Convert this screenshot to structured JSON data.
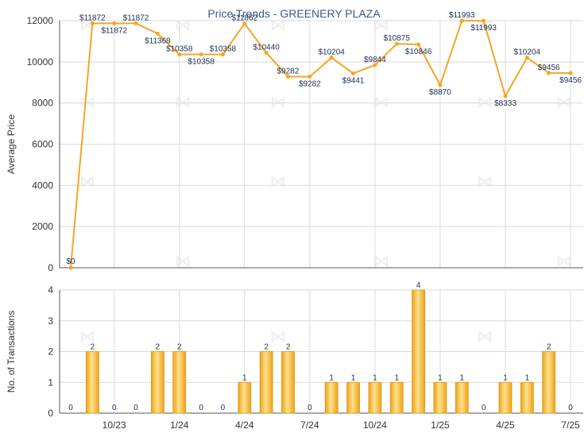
{
  "chart_data": [
    {
      "type": "line",
      "title": "Price Trends - GREENERY PLAZA",
      "ylabel": "Average Price",
      "ylim": [
        0,
        12000
      ],
      "yticks": [
        0,
        2000,
        4000,
        6000,
        8000,
        10000,
        12000
      ],
      "x": [
        "2023-08",
        "2023-09",
        "2023-10",
        "2023-11",
        "2023-12",
        "2024-01",
        "2024-02",
        "2024-03",
        "2024-04",
        "2024-05",
        "2024-06",
        "2024-07",
        "2024-08",
        "2024-09",
        "2024-10",
        "2024-11",
        "2024-12",
        "2025-01",
        "2025-02",
        "2025-03",
        "2025-04",
        "2025-05",
        "2025-06",
        "2025-07"
      ],
      "values": [
        0,
        11872,
        11872,
        11872,
        11369,
        10358,
        10358,
        10358,
        11862,
        10440,
        9282,
        9282,
        10204,
        9441,
        9844,
        10875,
        10846,
        8870,
        11993,
        11993,
        8333,
        10204,
        9456,
        9456
      ],
      "labels": [
        "$0",
        "$11872",
        "$11872",
        "$11872",
        "$11369",
        "$10358",
        "$10358",
        "$10358",
        "$11862",
        "$10440",
        "$9282",
        "$9282",
        "$10204",
        "$9441",
        "$9844",
        "$10875",
        "$10846",
        "$8870",
        "$11993",
        "$11993",
        "$8333",
        "$10204",
        "$9456",
        "$9456"
      ],
      "color": "#f5a623",
      "grid": true
    },
    {
      "type": "bar",
      "ylabel": "No. of Transactions",
      "ylim": [
        0,
        4
      ],
      "yticks": [
        0,
        1,
        2,
        3,
        4
      ],
      "categories": [
        "2023-08",
        "2023-09",
        "2023-10",
        "2023-11",
        "2023-12",
        "2024-01",
        "2024-02",
        "2024-03",
        "2024-04",
        "2024-05",
        "2024-06",
        "2024-07",
        "2024-08",
        "2024-09",
        "2024-10",
        "2024-11",
        "2024-12",
        "2025-01",
        "2025-02",
        "2025-03",
        "2025-04",
        "2025-05",
        "2025-06",
        "2025-07"
      ],
      "values": [
        0,
        2,
        0,
        0,
        2,
        2,
        0,
        0,
        1,
        2,
        2,
        0,
        1,
        1,
        1,
        1,
        4,
        1,
        1,
        0,
        1,
        1,
        2,
        0
      ],
      "xtick_labels": [
        "10/23",
        "1/24",
        "4/24",
        "7/24",
        "10/24",
        "1/25",
        "4/25",
        "7/25"
      ],
      "xtick_positions": [
        "2023-10",
        "2024-01",
        "2024-04",
        "2024-07",
        "2024-10",
        "2025-01",
        "2025-04",
        "2025-07"
      ],
      "color": "#f5a623",
      "grid": true
    }
  ],
  "watermark": "fish-logo"
}
